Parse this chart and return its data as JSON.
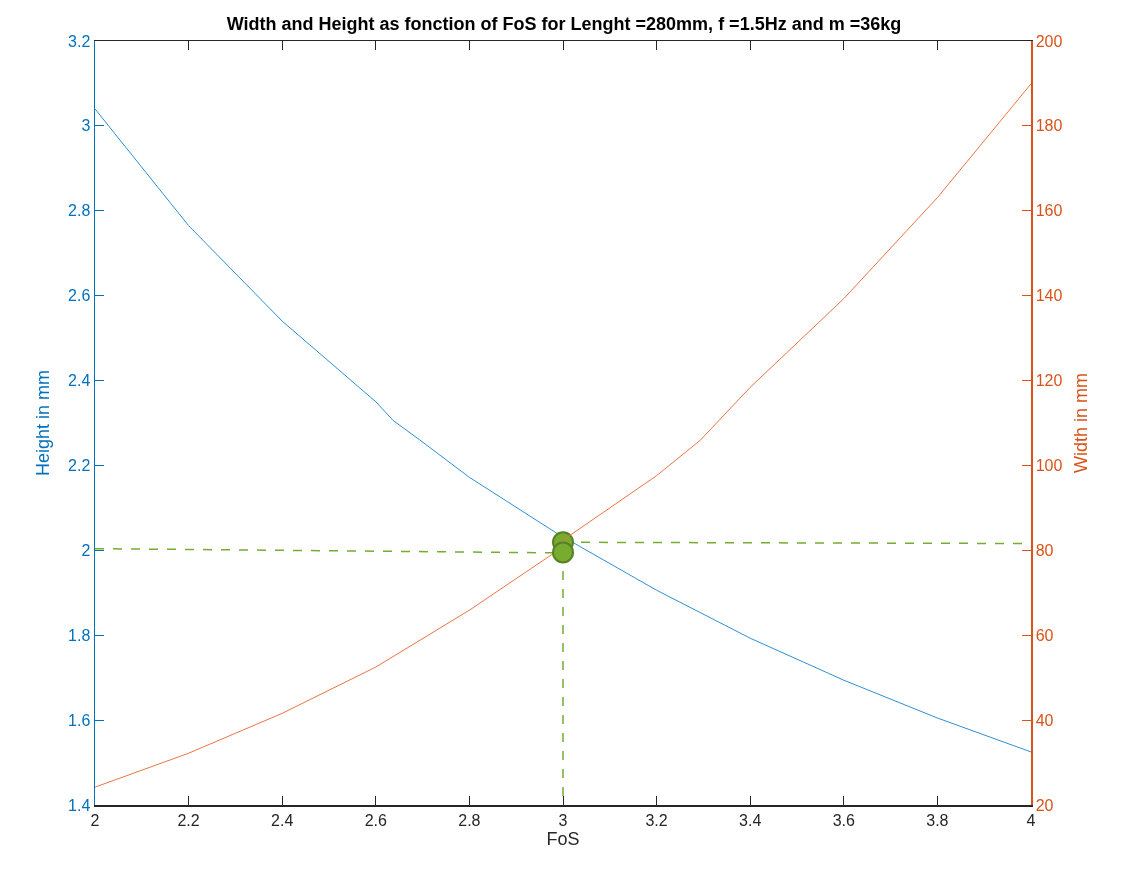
{
  "chart_data": {
    "type": "line",
    "title": "Width and Height as fonction of FoS for Lenght =280mm, f =1.5Hz and m =36kg",
    "xlabel": "FoS",
    "ylabel": "Height in mm",
    "y2label": "Width in mm",
    "xlim": [
      2,
      4
    ],
    "xticks": [
      2,
      2.2,
      2.4,
      2.6,
      2.8,
      3,
      3.2,
      3.4,
      3.6,
      3.8,
      4
    ],
    "ylim": [
      1.4,
      3.2
    ],
    "yticks": [
      1.4,
      1.6,
      1.8,
      2,
      2.2,
      2.4,
      2.6,
      2.8,
      3,
      3.2
    ],
    "y2lim": [
      20,
      200
    ],
    "y2ticks": [
      20,
      40,
      60,
      80,
      100,
      120,
      140,
      160,
      180,
      200
    ],
    "grid": false,
    "series": [
      {
        "color": "#2f8fd6",
        "x": [
          2,
          2.2,
          2.4,
          2.6,
          2.637,
          2.694,
          2.8,
          2.987,
          3.2,
          3.4,
          3.6,
          3.8,
          4
        ],
        "values": [
          3.04,
          2.765,
          2.54,
          2.35,
          2.306,
          2.26,
          2.172,
          2.04,
          1.906,
          1.793,
          1.694,
          1.605,
          1.525
        ]
      },
      {
        "color": "#ea7545",
        "axis": "y2",
        "x": [
          2,
          2.2,
          2.4,
          2.6,
          2.8,
          2.98,
          3,
          3.2,
          3.293,
          3.4,
          3.6,
          3.8,
          4
        ],
        "values": [
          24.2,
          32.2,
          41.6,
          52.5,
          65.9,
          79.3,
          82.4,
          97.6,
          105.9,
          118.4,
          139.3,
          163.1,
          189.9
        ]
      },
      {
        "color": "#77ac30",
        "line_style": "dashed",
        "x": [
          2,
          3
        ],
        "values": [
          2.004,
          1.994
        ]
      },
      {
        "color": "#77ac30",
        "line_style": "dashed",
        "axis": "y2",
        "x": [
          3,
          4
        ],
        "values": [
          81.9,
          81.6
        ]
      },
      {
        "color": "#77ac30",
        "line_style": "dashed",
        "x": [
          3,
          3
        ],
        "values": [
          1.994,
          1.4
        ]
      },
      {
        "type": "scatter",
        "marker": "circle",
        "color": "#77ac30",
        "x": [
          3
        ],
        "values": [
          2.019
        ]
      },
      {
        "type": "scatter",
        "marker": "circle",
        "color": "#77ac30",
        "axis": "y2",
        "x": [
          3
        ],
        "values": [
          79.5
        ]
      }
    ]
  }
}
